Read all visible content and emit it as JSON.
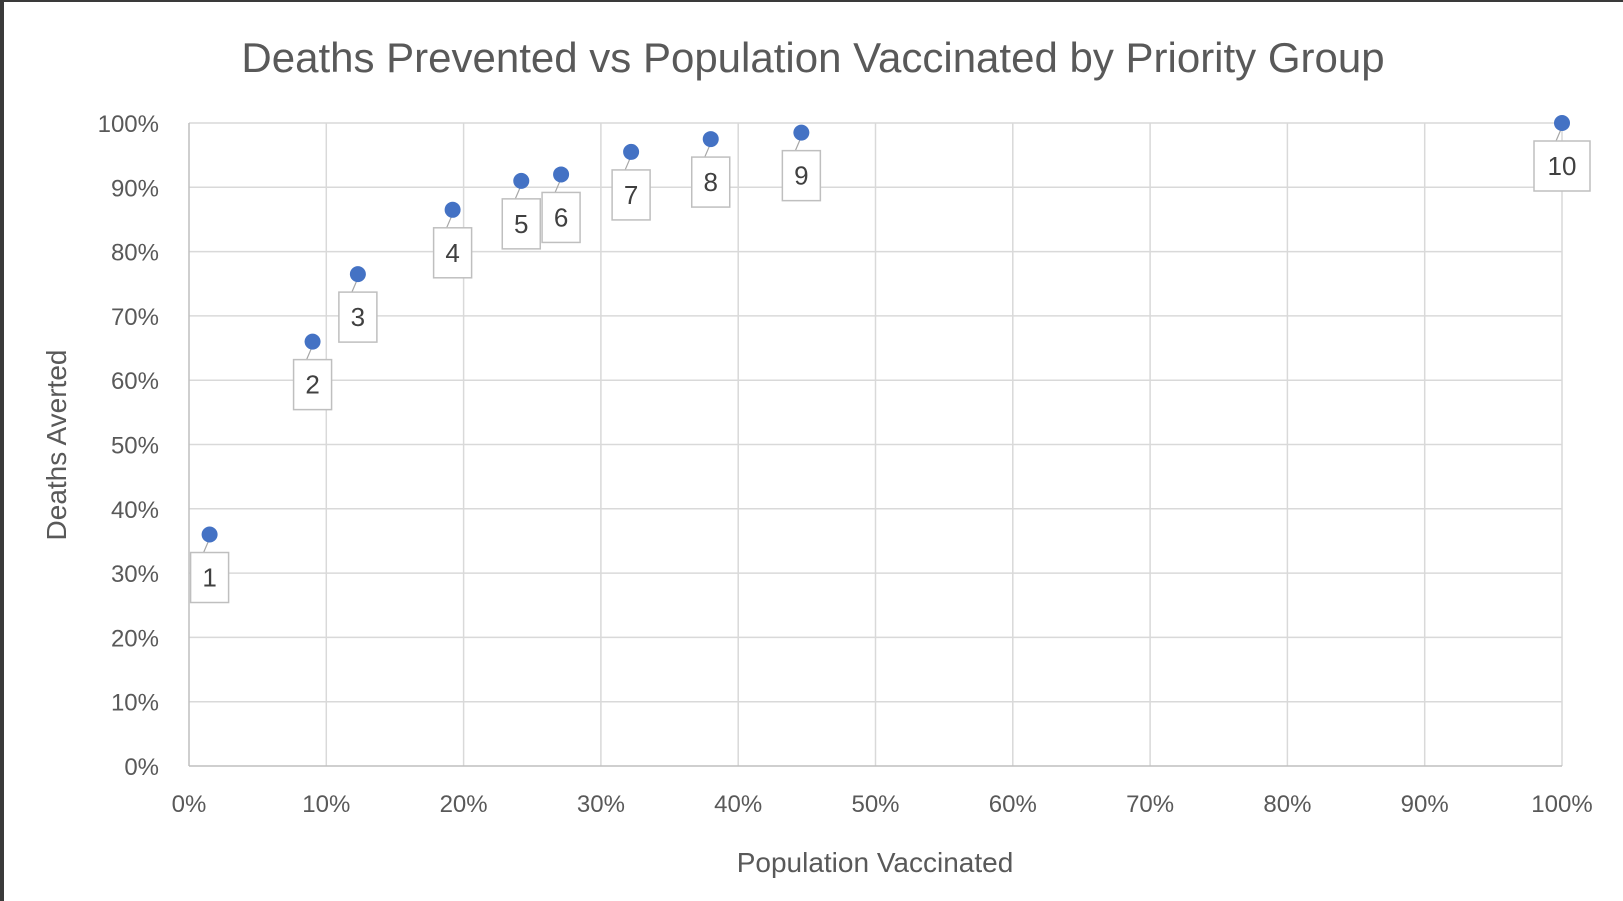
{
  "chart_data": {
    "type": "scatter",
    "title": "Deaths Prevented vs Population Vaccinated by Priority Group",
    "xlabel": "Population Vaccinated",
    "ylabel": "Deaths Averted",
    "xlim": [
      0,
      100
    ],
    "ylim": [
      0,
      100
    ],
    "x_ticks": [
      "0%",
      "10%",
      "20%",
      "30%",
      "40%",
      "50%",
      "60%",
      "70%",
      "80%",
      "90%",
      "100%"
    ],
    "y_ticks": [
      "0%",
      "10%",
      "20%",
      "30%",
      "40%",
      "50%",
      "60%",
      "70%",
      "80%",
      "90%",
      "100%"
    ],
    "grid": true,
    "legend": "none",
    "marker_color": "#4472c4",
    "points": [
      {
        "label": "1",
        "x": 1.5,
        "y": 36
      },
      {
        "label": "2",
        "x": 9,
        "y": 66
      },
      {
        "label": "3",
        "x": 12.3,
        "y": 76.5
      },
      {
        "label": "4",
        "x": 19.2,
        "y": 86.5
      },
      {
        "label": "5",
        "x": 24.2,
        "y": 91
      },
      {
        "label": "6",
        "x": 27.1,
        "y": 92
      },
      {
        "label": "7",
        "x": 32.2,
        "y": 95.5
      },
      {
        "label": "8",
        "x": 38,
        "y": 97.5
      },
      {
        "label": "9",
        "x": 44.6,
        "y": 98.5
      },
      {
        "label": "10",
        "x": 100,
        "y": 100
      }
    ]
  }
}
